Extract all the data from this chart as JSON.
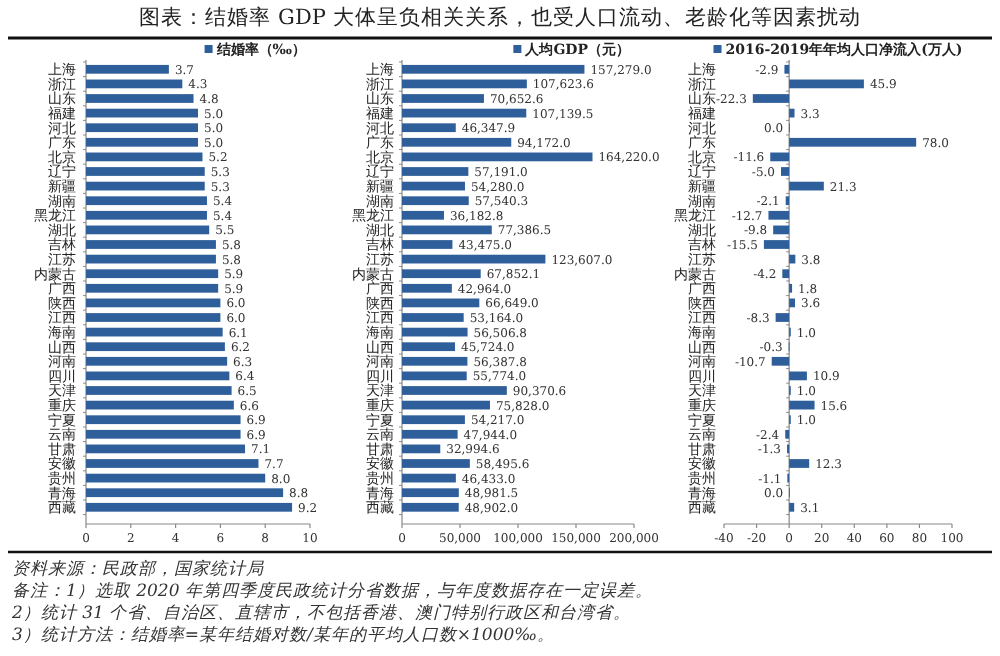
{
  "chart_data": [
    {
      "type": "bar",
      "orientation": "horizontal",
      "title": "图表：结婚率 GDP 大体呈负相关关系，也受人口流动、老龄化等因素扰动",
      "categories": [
        "上海",
        "浙江",
        "山东",
        "福建",
        "河北",
        "广东",
        "北京",
        "辽宁",
        "新疆",
        "湖南",
        "黑龙江",
        "湖北",
        "吉林",
        "江苏",
        "内蒙古",
        "广西",
        "陕西",
        "江西",
        "海南",
        "山西",
        "河南",
        "四川",
        "天津",
        "重庆",
        "宁夏",
        "云南",
        "甘肃",
        "安徽",
        "贵州",
        "青海",
        "西藏"
      ],
      "series": [
        {
          "name": "结婚率（‰）",
          "color": "#2f5f9a",
          "values": [
            3.7,
            4.3,
            4.8,
            5.0,
            5.0,
            5.0,
            5.2,
            5.3,
            5.3,
            5.4,
            5.4,
            5.5,
            5.8,
            5.8,
            5.9,
            5.9,
            6.0,
            6.0,
            6.1,
            6.2,
            6.3,
            6.4,
            6.5,
            6.6,
            6.9,
            6.9,
            7.1,
            7.7,
            8.0,
            8.8,
            9.2
          ],
          "value_labels": [
            "3.7",
            "4.3",
            "4.8",
            "5.0",
            "5.0",
            "5.0",
            "5.2",
            "5.3",
            "5.3",
            "5.4",
            "5.4",
            "5.5",
            "5.8",
            "5.8",
            "5.9",
            "5.9",
            "6.0",
            "6.0",
            "6.1",
            "6.2",
            "6.3",
            "6.4",
            "6.5",
            "6.6",
            "6.9",
            "6.9",
            "7.1",
            "7.7",
            "8.0",
            "8.8",
            "9.2"
          ]
        }
      ],
      "xlim": [
        0,
        10
      ],
      "xticks": [
        0,
        2,
        4,
        6,
        8,
        10
      ],
      "legend": "top right",
      "annotations": [
        "资料来源：民政部，国家统计局",
        "备注：1）选取 2020 年第四季度民政统计分省数据，与年度数据存在一定误差。",
        "2）统计 31 个省、自治区、直辖市，不包括香港、澳门特别行政区和台湾省。",
        "3）统计方法：结婚率=某年结婚对数/某年的平均人口数×1000‰。"
      ]
    },
    {
      "type": "bar",
      "orientation": "horizontal",
      "categories": [
        "上海",
        "浙江",
        "山东",
        "福建",
        "河北",
        "广东",
        "北京",
        "辽宁",
        "新疆",
        "湖南",
        "黑龙江",
        "湖北",
        "吉林",
        "江苏",
        "内蒙古",
        "广西",
        "陕西",
        "江西",
        "海南",
        "山西",
        "河南",
        "四川",
        "天津",
        "重庆",
        "宁夏",
        "云南",
        "甘肃",
        "安徽",
        "贵州",
        "青海",
        "西藏"
      ],
      "series": [
        {
          "name": "人均GDP（元）",
          "color": "#2f5f9a",
          "values": [
            157279.0,
            107623.6,
            70652.6,
            107139.5,
            46347.9,
            94172.0,
            164220.0,
            57191.0,
            54280.0,
            57540.3,
            36182.8,
            77386.5,
            43475.0,
            123607.0,
            67852.1,
            42964.0,
            66649.0,
            53164.0,
            56506.8,
            45724.0,
            56387.8,
            55774.0,
            90370.6,
            75828.0,
            54217.0,
            47944.0,
            32994.6,
            58495.6,
            46433.0,
            48981.5,
            48902.0
          ],
          "value_labels": [
            "157,279.0",
            "107,623.6",
            "70,652.6",
            "107,139.5",
            "46,347.9",
            "94,172.0",
            "164,220.0",
            "57,191.0",
            "54,280.0",
            "57,540.3",
            "36,182.8",
            "77,386.5",
            "43,475.0",
            "123,607.0",
            "67,852.1",
            "42,964.0",
            "66,649.0",
            "53,164.0",
            "56,506.8",
            "45,724.0",
            "56,387.8",
            "55,774.0",
            "90,370.6",
            "75,828.0",
            "54,217.0",
            "47,944.0",
            "32,994.6",
            "58,495.6",
            "46,433.0",
            "48,981.5",
            "48,902.0"
          ]
        }
      ],
      "xlim": [
        0,
        200000
      ],
      "xticks": [
        0,
        {
          "value": 50000,
          "label": "50,000"
        },
        {
          "value": 100000,
          "label": "100,000"
        },
        {
          "value": 150000,
          "label": "150,000"
        },
        {
          "value": 200000,
          "label": "200,000"
        }
      ],
      "legend": "top right"
    },
    {
      "type": "bar",
      "orientation": "horizontal",
      "categories": [
        "上海",
        "浙江",
        "山东",
        "福建",
        "河北",
        "广东",
        "北京",
        "辽宁",
        "新疆",
        "湖南",
        "黑龙江",
        "湖北",
        "吉林",
        "江苏",
        "内蒙古",
        "广西",
        "陕西",
        "江西",
        "海南",
        "山西",
        "河南",
        "四川",
        "天津",
        "重庆",
        "宁夏",
        "云南",
        "甘肃",
        "安徽",
        "贵州",
        "青海",
        "西藏"
      ],
      "series": [
        {
          "name": "2016-2019年年均人口净流入(万人)",
          "color": "#2f5f9a",
          "values": [
            -2.9,
            45.9,
            -22.3,
            3.3,
            0.0,
            78.0,
            -11.6,
            -5.0,
            21.3,
            -2.1,
            -12.7,
            -9.8,
            -15.5,
            3.8,
            -4.2,
            1.8,
            3.6,
            -8.3,
            1.0,
            -0.3,
            -10.7,
            10.9,
            1.0,
            15.6,
            1.0,
            -2.4,
            -1.3,
            12.3,
            -1.1,
            0.0,
            3.1
          ],
          "value_labels": [
            "-2.9",
            "45.9",
            "-22.3",
            "3.3",
            "0.0",
            "78.0",
            "-11.6",
            "-5.0",
            "21.3",
            "-2.1",
            "-12.7",
            "-9.8",
            "-15.5",
            "3.8",
            "-4.2",
            "1.8",
            "3.6",
            "-8.3",
            "1.0",
            "-0.3",
            "-10.7",
            "10.9",
            "1.0",
            "15.6",
            "1.0",
            "-2.4",
            "-1.3",
            "12.3",
            "-1.1",
            "0.0",
            "3.1"
          ]
        }
      ],
      "xlim": [
        -40,
        100
      ],
      "xticks": [
        -40,
        -20,
        0,
        20,
        40,
        60,
        80,
        100
      ],
      "legend": "top"
    }
  ]
}
